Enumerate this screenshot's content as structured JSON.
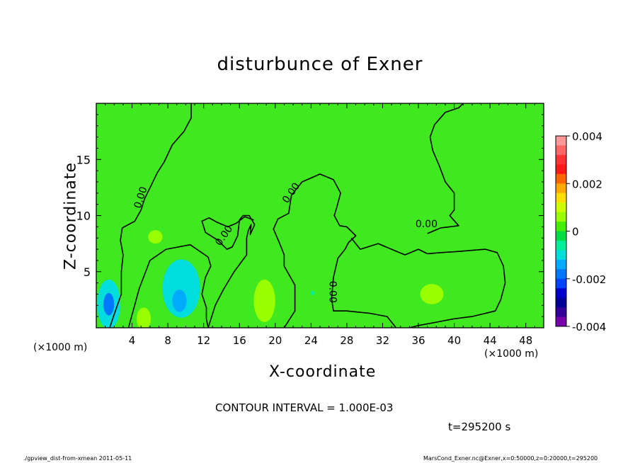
{
  "chart_data": {
    "type": "heatmap",
    "title": "disturbunce of Exner",
    "xlabel": "X-coordinate",
    "ylabel": "Z-coordinate",
    "x_unit": "(×1000 m)",
    "y_unit": "(×1000 m)",
    "xlim": [
      0,
      50
    ],
    "ylim": [
      0,
      20
    ],
    "x_ticks": [
      4,
      8,
      12,
      16,
      20,
      24,
      28,
      32,
      36,
      40,
      44,
      48
    ],
    "y_ticks": [
      5,
      10,
      15
    ],
    "colorbar": {
      "range": [
        -0.004,
        0.004
      ],
      "tick_labels": [
        "0.004",
        "0.002",
        "0",
        "-0.002",
        "-0.004"
      ],
      "tick_values": [
        0.004,
        0.002,
        0,
        -0.002,
        -0.004
      ],
      "colors": [
        "#ff9999",
        "#ff6666",
        "#ff3333",
        "#ff1a1a",
        "#ff6600",
        "#ffaa00",
        "#ffdd00",
        "#ccff00",
        "#99ff00",
        "#44ee00",
        "#00dd44",
        "#00ee99",
        "#00dddd",
        "#00aaff",
        "#0077ff",
        "#0044ff",
        "#0000cc",
        "#000099",
        "#330099",
        "#7700aa"
      ]
    },
    "contour_labels": [
      "0.00",
      "0.00",
      "0.00",
      "0.00",
      "0.00",
      "0.00"
    ],
    "contour_interval": "CONTOUR INTERVAL = 1.000E-03",
    "time_label": "t=295200 s",
    "background_color": "#3fe81f",
    "blobs": [
      {
        "x": 1.4,
        "z": 2.1,
        "rx": 1.3,
        "rz": 2.2,
        "value": -0.0012
      },
      {
        "x": 1.4,
        "z": 2.1,
        "rx": 0.6,
        "rz": 1.0,
        "value": -0.0017
      },
      {
        "x": 9.5,
        "z": 3.5,
        "rx": 2.1,
        "rz": 2.6,
        "value": -0.0009
      },
      {
        "x": 9.3,
        "z": 2.4,
        "rx": 0.8,
        "rz": 1.0,
        "value": -0.0014
      },
      {
        "x": 18.8,
        "z": 2.4,
        "rx": 1.2,
        "rz": 1.9,
        "value": 0.0006
      },
      {
        "x": 5.3,
        "z": 0.8,
        "rx": 0.8,
        "rz": 1.0,
        "value": 0.0006
      },
      {
        "x": 6.6,
        "z": 8.1,
        "rx": 0.8,
        "rz": 0.6,
        "value": 0.0005
      },
      {
        "x": 37.5,
        "z": 3.0,
        "rx": 1.3,
        "rz": 0.9,
        "value": 0.0005
      },
      {
        "x": 24.2,
        "z": 3.1,
        "rx": 0.2,
        "rz": 0.2,
        "value": -0.0006
      }
    ],
    "contours": [
      [
        [
          1.5,
          0
        ],
        [
          2.0,
          1.2
        ],
        [
          2.8,
          3.0
        ],
        [
          2.8,
          5.0
        ],
        [
          3.0,
          6.5
        ],
        [
          2.7,
          7.8
        ],
        [
          2.9,
          8.9
        ],
        [
          4.3,
          9.5
        ],
        [
          5.0,
          10.5
        ],
        [
          5.4,
          11.5
        ],
        [
          6.2,
          12.8
        ],
        [
          6.8,
          13.8
        ],
        [
          7.6,
          14.8
        ],
        [
          8.5,
          16.3
        ],
        [
          9.8,
          17.5
        ],
        [
          10.6,
          18.7
        ],
        [
          10.6,
          20
        ]
      ],
      [
        [
          3.6,
          0
        ],
        [
          4.8,
          3.5
        ],
        [
          6.0,
          6.0
        ],
        [
          7.8,
          7.0
        ],
        [
          10.5,
          7.4
        ],
        [
          12.5,
          6.3
        ],
        [
          12.8,
          5.5
        ],
        [
          12.2,
          4.5
        ],
        [
          11.8,
          3.0
        ],
        [
          12.3,
          1.8
        ],
        [
          12.3,
          0.8
        ],
        [
          12.5,
          0
        ]
      ],
      [
        [
          12.5,
          0
        ],
        [
          13.3,
          2.0
        ],
        [
          14.2,
          3.4
        ],
        [
          15.4,
          5.0
        ],
        [
          16.8,
          6.5
        ],
        [
          16.8,
          8.0
        ],
        [
          17.0,
          8.7
        ],
        [
          17.3,
          9.2
        ],
        [
          17.2,
          8.3
        ],
        [
          17.7,
          9.2
        ],
        [
          17.1,
          10.0
        ],
        [
          16.4,
          10.0
        ],
        [
          16.0,
          9.6
        ],
        [
          15.8,
          8.2
        ],
        [
          15.2,
          7.2
        ],
        [
          14.6,
          7.0
        ],
        [
          13.6,
          7.8
        ],
        [
          12.2,
          8.5
        ],
        [
          11.8,
          9.5
        ],
        [
          12.6,
          9.8
        ],
        [
          13.5,
          9.4
        ],
        [
          14.7,
          9.0
        ],
        [
          15.6,
          9.3
        ],
        [
          16.6,
          9.9
        ],
        [
          17.6,
          9.6
        ]
      ],
      [
        [
          21.0,
          0
        ],
        [
          22.2,
          1.5
        ],
        [
          22.2,
          3.8
        ],
        [
          21.0,
          5.5
        ],
        [
          21.0,
          6.5
        ],
        [
          20.5,
          7.5
        ],
        [
          19.8,
          8.8
        ],
        [
          20.3,
          9.7
        ],
        [
          21.5,
          10.2
        ],
        [
          21.8,
          11.8
        ],
        [
          23.0,
          13.0
        ],
        [
          25.0,
          13.7
        ],
        [
          26.5,
          13.2
        ],
        [
          27.3,
          12.0
        ],
        [
          26.9,
          10.8
        ],
        [
          26.6,
          10.0
        ],
        [
          27.2,
          9.1
        ],
        [
          28.0,
          9.0
        ],
        [
          29.0,
          8.2
        ],
        [
          28.2,
          7.6
        ],
        [
          27.8,
          7.0
        ],
        [
          27.0,
          6.2
        ],
        [
          26.5,
          4.5
        ],
        [
          26.3,
          2.6
        ],
        [
          26.5,
          1.5
        ],
        [
          28.0,
          1.5
        ],
        [
          30.5,
          1.3
        ],
        [
          32.5,
          1.0
        ],
        [
          33.5,
          0.0
        ]
      ],
      [
        [
          28.5,
          8.0
        ],
        [
          29.5,
          7.0
        ],
        [
          31.5,
          7.5
        ],
        [
          33.0,
          7.0
        ],
        [
          34.5,
          6.5
        ],
        [
          36.0,
          7.0
        ],
        [
          37.0,
          6.6
        ],
        [
          38.5,
          6.7
        ],
        [
          40.5,
          6.8
        ],
        [
          42.0,
          6.9
        ],
        [
          43.5,
          7.0
        ],
        [
          44.8,
          6.7
        ],
        [
          45.5,
          5.5
        ],
        [
          45.7,
          4.0
        ],
        [
          45.2,
          2.5
        ],
        [
          44.6,
          1.5
        ],
        [
          42.0,
          1.0
        ],
        [
          40.0,
          0.8
        ],
        [
          38.0,
          0.5
        ],
        [
          36.0,
          0.2
        ],
        [
          35.0,
          0
        ]
      ],
      [
        [
          37.0,
          8.4
        ],
        [
          38.5,
          8.9
        ],
        [
          40.5,
          9.1
        ],
        [
          39.5,
          10.0
        ],
        [
          40.0,
          10.5
        ],
        [
          40.0,
          12.0
        ],
        [
          39.0,
          13.0
        ],
        [
          38.3,
          14.5
        ],
        [
          37.6,
          15.8
        ],
        [
          37.3,
          17.0
        ],
        [
          37.8,
          18.1
        ],
        [
          39.0,
          19.2
        ],
        [
          40.5,
          19.6
        ],
        [
          41.0,
          20
        ]
      ]
    ],
    "contour_label_positions": [
      {
        "x": 5.0,
        "z": 11.6,
        "rot": -72
      },
      {
        "x": 14.3,
        "z": 8.2,
        "rot": -55
      },
      {
        "x": 21.8,
        "z": 12.0,
        "rot": -55
      },
      {
        "x": 26.4,
        "z": 3.2,
        "rot": 90
      },
      {
        "x": 36.9,
        "z": 9.2,
        "rot": 0
      },
      {
        "x": 14.4,
        "z": 8.1,
        "rot": -55
      }
    ]
  },
  "footer": {
    "left": "./gpview_dist-from-xmean   2011-05-11",
    "right": "MarsCond_Exner.nc@Exner,x=0:50000,z=0:20000,t=295200"
  }
}
